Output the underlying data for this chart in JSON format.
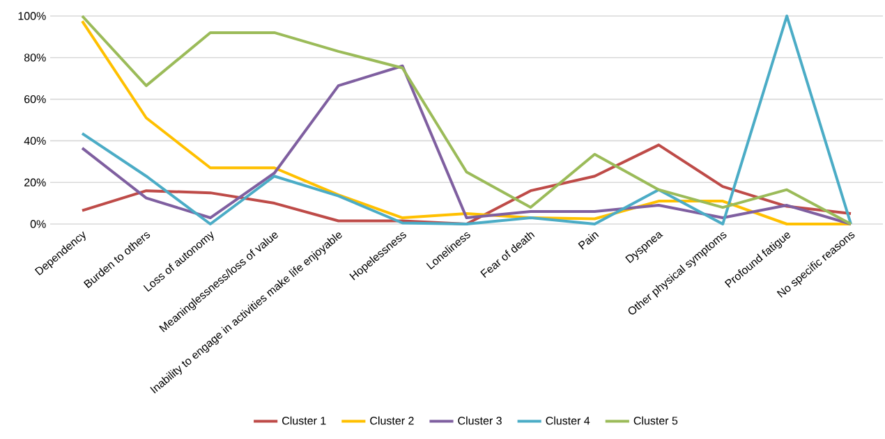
{
  "chart_data": {
    "type": "line",
    "categories": [
      "Dependency",
      "Burden to others",
      "Loss of autonomy",
      "Meaninglessness/loss of value",
      "Inability to engage in activities make life enjoyable",
      "Hopelessness",
      "Loneliness",
      "Fear of death",
      "Pain",
      "Dyspnea",
      "Other physical symptoms",
      "Profound fatigue",
      "No specific reasons"
    ],
    "series": [
      {
        "name": "Cluster 1",
        "color": "#be4b48",
        "values": [
          6.5,
          16,
          15,
          10,
          1.5,
          1.5,
          0,
          16,
          23,
          38,
          18,
          8.5,
          5
        ]
      },
      {
        "name": "Cluster 2",
        "color": "#ffc000",
        "values": [
          97.5,
          51,
          27,
          27,
          14,
          3,
          5,
          3,
          2.5,
          11,
          11,
          0,
          0
        ]
      },
      {
        "name": "Cluster 3",
        "color": "#7f5fa0",
        "values": [
          36.5,
          12.5,
          3,
          24.5,
          66.5,
          76,
          3,
          6,
          6,
          9,
          3,
          9,
          0
        ]
      },
      {
        "name": "Cluster 4",
        "color": "#4bacc6",
        "values": [
          43.5,
          23,
          0,
          23,
          13.5,
          0.5,
          0,
          3,
          0,
          16.5,
          0,
          100,
          0
        ]
      },
      {
        "name": "Cluster 5",
        "color": "#9bbb59",
        "values": [
          100,
          66.5,
          92,
          92,
          83,
          75,
          25,
          8,
          33.5,
          16.5,
          8,
          16.5,
          0
        ]
      }
    ],
    "ylim": [
      0,
      100
    ],
    "yticks": [
      {
        "value": 0,
        "label": "0%"
      },
      {
        "value": 20,
        "label": "20%"
      },
      {
        "value": 40,
        "label": "40%"
      },
      {
        "value": 60,
        "label": "60%"
      },
      {
        "value": 80,
        "label": "80%"
      },
      {
        "value": 100,
        "label": "100%"
      }
    ],
    "grid": "y",
    "legend": "bottom",
    "marker": "none",
    "line_style": "solid"
  }
}
